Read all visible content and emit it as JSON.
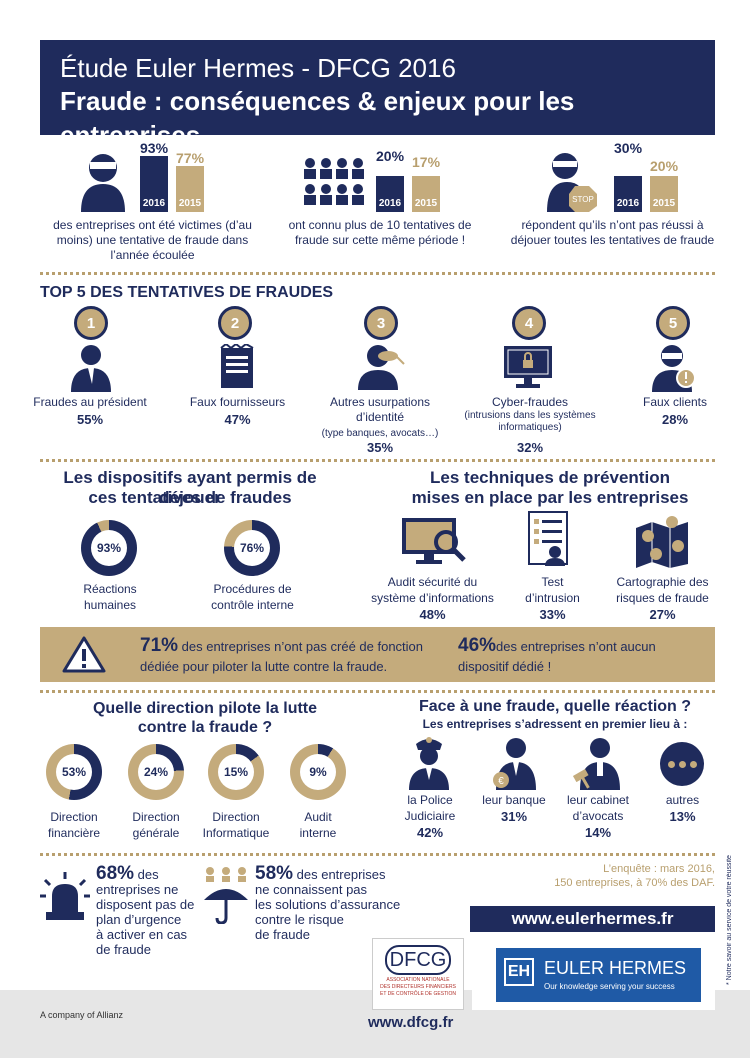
{
  "header": {
    "title": "Étude Euler Hermes - DFCG 2016",
    "subtitle": "Fraude : conséquences & enjeux pour les entreprises"
  },
  "stats": [
    {
      "p2016": "93%",
      "p2015": "77%",
      "y1": "2016",
      "y2": "2015",
      "v2016": 0.93,
      "v2015": 0.77,
      "text": "des entreprises ont été victimes (d’au moins) une tentative de fraude dans l’année écoulée"
    },
    {
      "p2016": "20%",
      "p2015": "17%",
      "y1": "2016",
      "y2": "2015",
      "v2016": 0.2,
      "v2015": 0.17,
      "text": "ont connu plus de 10 tentatives de fraude sur cette même période !"
    },
    {
      "p2016": "30%",
      "p2015": "20%",
      "y1": "2016",
      "y2": "2015",
      "v2016": 0.3,
      "v2015": 0.2,
      "text": "répondent qu’ils n’ont pas réussi à déjouer toutes les tentatives de fraude"
    }
  ],
  "top5": {
    "title": "TOP 5 DES TENTATIVES DE FRAUDES",
    "items": [
      {
        "num": "1",
        "label": "Fraudes au président",
        "note": "",
        "pct": "55%"
      },
      {
        "num": "2",
        "label": "Faux fournisseurs",
        "note": "",
        "pct": "47%"
      },
      {
        "num": "3",
        "label": "Autres usurpations d’identité",
        "note": "(type banques, avocats…)",
        "pct": "35%"
      },
      {
        "num": "4",
        "label": "Cyber-fraudes",
        "note": "(intrusions dans les systèmes informatiques)",
        "pct": "32%"
      },
      {
        "num": "5",
        "label": "Faux clients",
        "note": "",
        "pct": "28%"
      }
    ]
  },
  "dispositifs": {
    "title1": "Les dispositifs ayant permis de déjouer",
    "title2": "ces tentatives de fraudes",
    "items": [
      {
        "pct": "93%",
        "value": 0.93,
        "label1": "Réactions",
        "label2": "humaines"
      },
      {
        "pct": "76%",
        "value": 0.76,
        "label1": "Procédures de",
        "label2": "contrôle interne"
      }
    ]
  },
  "techniques": {
    "title1": "Les techniques de prévention",
    "title2": "mises en place par les entreprises",
    "items": [
      {
        "label1": "Audit sécurité du",
        "label2": "système d’informations",
        "pct": "48%"
      },
      {
        "label1": "Test",
        "label2": "d’intrusion",
        "pct": "33%"
      },
      {
        "label1": "Cartographie des",
        "label2": "risques de fraude",
        "pct": "27%"
      }
    ]
  },
  "banner": {
    "pct1": "71%",
    "text1a": " des entreprises n’ont pas créé de fonction",
    "text1b": "dédiée pour piloter la lutte contre la fraude.",
    "pct2": "46%",
    "text2a": "des entreprises n’ont aucun",
    "text2b": "dispositif dédié !"
  },
  "direction": {
    "title1": "Quelle direction pilote la lutte",
    "title2": "contre la fraude ?",
    "items": [
      {
        "pct": "53%",
        "value": 0.53,
        "label1": "Direction",
        "label2": "financière"
      },
      {
        "pct": "24%",
        "value": 0.24,
        "label1": "Direction",
        "label2": "générale"
      },
      {
        "pct": "15%",
        "value": 0.15,
        "label1": "Direction",
        "label2": "Informatique"
      },
      {
        "pct": "9%",
        "value": 0.09,
        "label1": "Audit",
        "label2": "interne"
      }
    ]
  },
  "reaction": {
    "title": "Face à une fraude, quelle réaction ?",
    "subtitle": "Les entreprises s’adressent en premier lieu à :",
    "items": [
      {
        "label1": "la Police",
        "label2": "Judiciaire",
        "pct": "42%"
      },
      {
        "label1": "leur banque",
        "label2": "",
        "pct": "31%"
      },
      {
        "label1": "leur cabinet",
        "label2": "d’avocats",
        "pct": "14%"
      },
      {
        "label1": "autres",
        "label2": "",
        "pct": "13%"
      }
    ]
  },
  "bottom": {
    "pct1": "68%",
    "text1": [
      " des",
      "entreprises ne",
      "disposent pas de",
      "plan d’urgence",
      "à activer en cas",
      "de fraude"
    ],
    "pct2": "58%",
    "text2": [
      " des entreprises",
      "ne connaissent pas",
      "les solutions d’assurance",
      "contre le risque",
      "de fraude"
    ],
    "survey1": "L’enquête : mars 2016,",
    "survey2": "150 entreprises, à 70% des DAF.",
    "url1": "www.eulerhermes.fr",
    "url2": "www.dfcg.fr",
    "allianz": "A company of Allianz",
    "dfcg": "DFCG",
    "dfcg_sub1": "ASSOCIATION NATIONALE",
    "dfcg_sub2": "DES DIRECTEURS FINANCIERS",
    "dfcg_sub3": "ET DE CONTRÔLE DE GESTION",
    "eh_brand": "EULER HERMES",
    "eh_tag": "Our knowledge serving your success",
    "side_note": "* Notre savoir au service de votre réussite"
  },
  "colors": {
    "navy": "#1f2b5c",
    "gold": "#c4ab7c"
  }
}
